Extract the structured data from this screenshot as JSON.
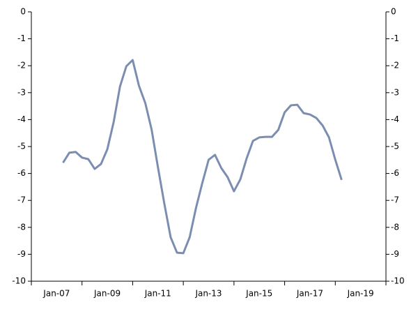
{
  "chart_data": {
    "type": "line",
    "x": [
      2007.25,
      2007.5,
      2007.75,
      2008,
      2008.25,
      2008.5,
      2008.75,
      2009,
      2009.25,
      2009.5,
      2009.75,
      2010,
      2010.25,
      2010.5,
      2010.75,
      2011,
      2011.25,
      2011.5,
      2011.75,
      2012,
      2012.25,
      2012.5,
      2012.75,
      2013,
      2013.25,
      2013.5,
      2013.75,
      2014,
      2014.25,
      2014.5,
      2014.75,
      2015,
      2015.25,
      2015.5,
      2015.75,
      2016,
      2016.25,
      2016.5,
      2016.75,
      2017,
      2017.25,
      2017.5,
      2017.75,
      2018,
      2018.25
    ],
    "series": [
      {
        "color": "#7b8db0",
        "values": [
          -5.6,
          -5.23,
          -5.2,
          -5.41,
          -5.47,
          -5.83,
          -5.65,
          -5.1,
          -4.09,
          -2.77,
          -2.02,
          -1.79,
          -2.75,
          -3.39,
          -4.38,
          -5.78,
          -7.12,
          -8.37,
          -8.94,
          -8.96,
          -8.37,
          -7.28,
          -6.35,
          -5.49,
          -5.31,
          -5.8,
          -6.14,
          -6.66,
          -6.22,
          -5.44,
          -4.79,
          -4.66,
          -4.64,
          -4.64,
          -4.38,
          -3.73,
          -3.47,
          -3.45,
          -3.76,
          -3.81,
          -3.94,
          -4.22,
          -4.66,
          -5.49,
          -6.24
        ]
      }
    ],
    "xlim": [
      2006,
      2020
    ],
    "xticks": [
      {
        "value": 2007,
        "label": "Jan-07"
      },
      {
        "value": 2009,
        "label": "Jan-09"
      },
      {
        "value": 2011,
        "label": "Jan-11"
      },
      {
        "value": 2013,
        "label": "Jan-13"
      },
      {
        "value": 2015,
        "label": "Jan-15"
      },
      {
        "value": 2017,
        "label": "Jan-17"
      },
      {
        "value": 2019,
        "label": "Jan-19"
      }
    ],
    "ylim": [
      -10,
      0
    ],
    "yticks": [
      0,
      -1,
      -2,
      -3,
      -4,
      -5,
      -6,
      -7,
      -8,
      -9,
      -10
    ],
    "y2lim": [
      -10,
      0
    ],
    "y2ticks": [
      0,
      -1,
      -2,
      -3,
      -4,
      -5,
      -6,
      -7,
      -8,
      -9,
      -10
    ]
  }
}
